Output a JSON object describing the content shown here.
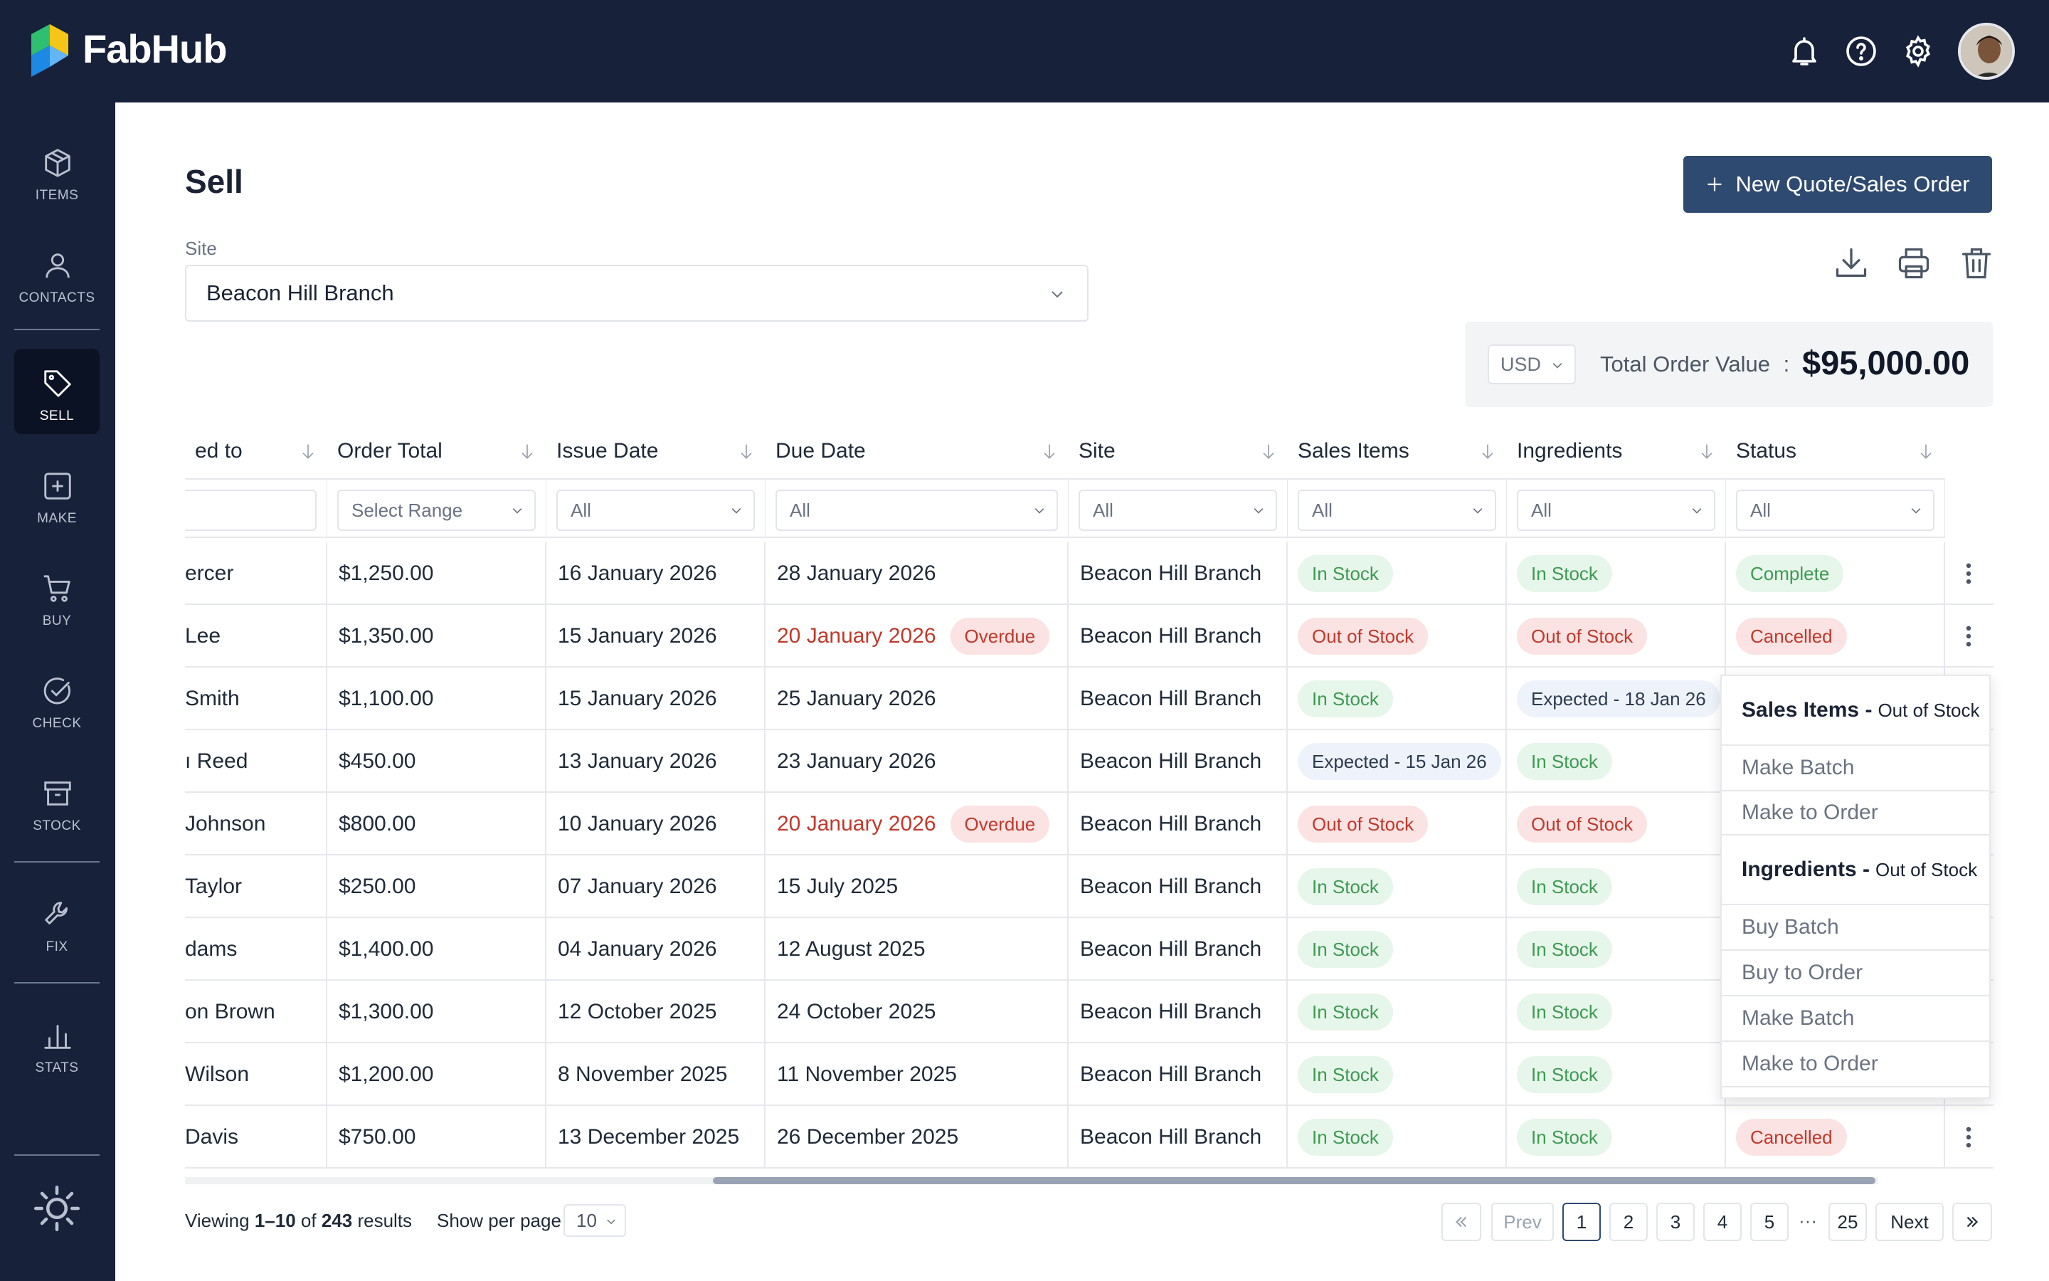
{
  "app": {
    "brand": "FabHub"
  },
  "sidebar": {
    "items": [
      {
        "label": "ITEMS",
        "icon": "cube-icon"
      },
      {
        "label": "CONTACTS",
        "icon": "person-icon"
      },
      {
        "label": "SELL",
        "icon": "tag-icon",
        "active": true
      },
      {
        "label": "MAKE",
        "icon": "plus-square-icon"
      },
      {
        "label": "BUY",
        "icon": "cart-icon"
      },
      {
        "label": "CHECK",
        "icon": "check-circle-icon"
      },
      {
        "label": "STOCK",
        "icon": "archive-icon"
      },
      {
        "label": "FIX",
        "icon": "wrench-icon"
      },
      {
        "label": "STATS",
        "icon": "bar-chart-icon"
      }
    ]
  },
  "page": {
    "title": "Sell",
    "new_button": "New Quote/Sales Order"
  },
  "site": {
    "label": "Site",
    "value": "Beacon Hill Branch"
  },
  "totals": {
    "currency": "USD",
    "label": "Total Order Value",
    "separator": ":",
    "value": "$95,000.00"
  },
  "table": {
    "headers": [
      "ed to",
      "Order Total",
      "Issue Date",
      "Due Date",
      "Site",
      "Sales Items",
      "Ingredients",
      "Status"
    ],
    "filters": [
      "",
      "Select Range",
      "All",
      "All",
      "All",
      "All",
      "All",
      "All"
    ],
    "rows": [
      {
        "customer": "ercer",
        "total": "$1,250.00",
        "issue": "16 January 2026",
        "due": "28 January 2026",
        "overdue": "",
        "site": "Beacon Hill Branch",
        "sales": "In Stock",
        "ingredients": "In Stock",
        "status": "Complete"
      },
      {
        "customer": " Lee",
        "total": "$1,350.00",
        "issue": "15 January 2026",
        "due": "20 January 2026",
        "overdue": "Overdue",
        "site": "Beacon Hill Branch",
        "sales": "Out of Stock",
        "ingredients": "Out of Stock",
        "status": "Cancelled"
      },
      {
        "customer": "Smith",
        "total": "$1,100.00",
        "issue": "15 January 2026",
        "due": "25 January 2026",
        "overdue": "",
        "site": "Beacon Hill Branch",
        "sales": "In Stock",
        "ingredients": "Expected - 18 Jan 26",
        "status": ""
      },
      {
        "customer": "ı Reed",
        "total": "$450.00",
        "issue": "13 January 2026",
        "due": "23 January 2026",
        "overdue": "",
        "site": "Beacon Hill Branch",
        "sales": "Expected - 15 Jan 26",
        "ingredients": "In Stock",
        "status": ""
      },
      {
        "customer": "Johnson",
        "total": "$800.00",
        "issue": "10 January 2026",
        "due": "20 January 2026",
        "overdue": "Overdue",
        "site": "Beacon Hill Branch",
        "sales": "Out of Stock",
        "ingredients": "Out of Stock",
        "status": ""
      },
      {
        "customer": "Taylor",
        "total": "$250.00",
        "issue": "07 January 2026",
        "due": "15 July 2025",
        "overdue": "",
        "site": "Beacon Hill Branch",
        "sales": "In Stock",
        "ingredients": "In Stock",
        "status": ""
      },
      {
        "customer": "dams",
        "total": "$1,400.00",
        "issue": "04 January 2026",
        "due": "12 August 2025",
        "overdue": "",
        "site": "Beacon Hill Branch",
        "sales": "In Stock",
        "ingredients": "In Stock",
        "status": ""
      },
      {
        "customer": "on Brown",
        "total": "$1,300.00",
        "issue": "12 October 2025",
        "due": "24 October 2025",
        "overdue": "",
        "site": "Beacon Hill Branch",
        "sales": "In Stock",
        "ingredients": "In Stock",
        "status": ""
      },
      {
        "customer": "Wilson",
        "total": "$1,200.00",
        "issue": "8 November 2025",
        "due": "11 November 2025",
        "overdue": "",
        "site": "Beacon Hill Branch",
        "sales": "In Stock",
        "ingredients": "In Stock",
        "status": ""
      },
      {
        "customer": "Davis",
        "total": "$750.00",
        "issue": "13 December 2025",
        "due": "26 December 2025",
        "overdue": "",
        "site": "Beacon Hill Branch",
        "sales": "In Stock",
        "ingredients": "In Stock",
        "status": "Cancelled"
      }
    ]
  },
  "menu": {
    "sales_title": "Sales Items -",
    "sales_state": "Out of Stock",
    "sales_items": [
      "Make Batch",
      "Make to Order"
    ],
    "ingredients_title": "Ingredients -",
    "ingredients_state": "Out of Stock",
    "ingredients_items": [
      "Buy Batch",
      "Buy to Order",
      "Make Batch",
      "Make to Order"
    ]
  },
  "footer": {
    "viewing_prefix": "Viewing",
    "viewing_range": "1–10",
    "viewing_of": "of",
    "viewing_total": "243",
    "viewing_suffix": "results",
    "per_page_label": "Show per page",
    "per_page": "10"
  },
  "pagination": {
    "prev": "Prev",
    "next": "Next",
    "pages": [
      "1",
      "2",
      "3",
      "4",
      "5"
    ],
    "ellipsis": "···",
    "last": "25",
    "current": "1"
  },
  "colors": {
    "topbar": "#17213a",
    "accent": "#2f4a70",
    "green": "#3c9a52",
    "red": "#c0392b"
  }
}
